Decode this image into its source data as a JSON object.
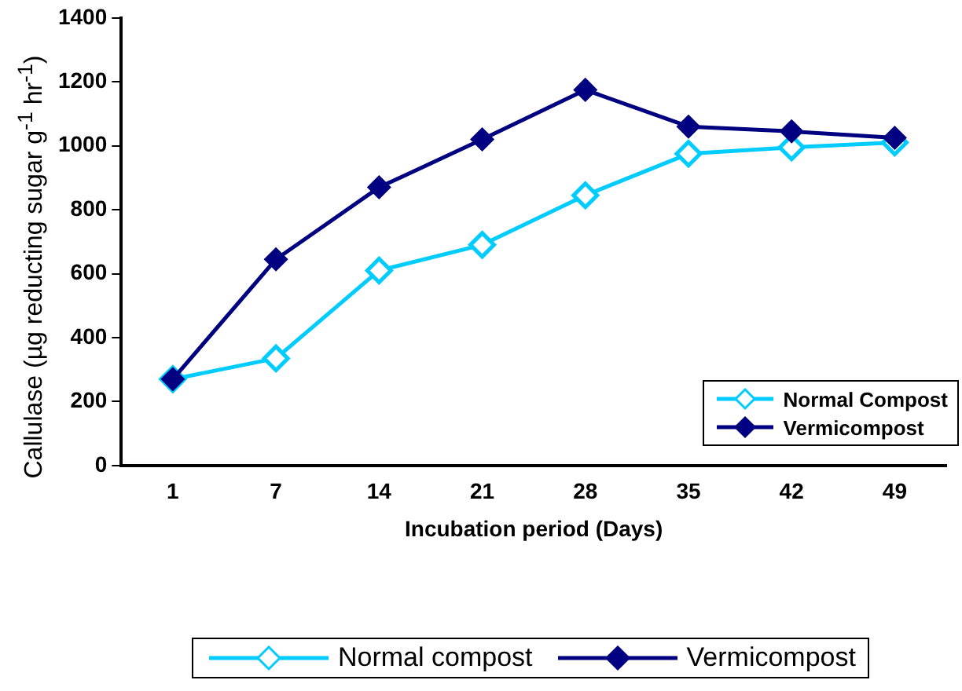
{
  "chart_data": {
    "type": "line",
    "xlabel": "Incubation period (Days)",
    "ylabel": "Callulase (µg reducting sugar g$^{-1}$ hr$^{-1}$)",
    "categories": [
      "1",
      "7",
      "14",
      "21",
      "28",
      "35",
      "42",
      "49"
    ],
    "series": [
      {
        "name": "Normal Compost",
        "color": "#00ccff",
        "values": [
          270,
          335,
          610,
          690,
          845,
          975,
          995,
          1010
        ]
      },
      {
        "name": "Vermicompost",
        "color": "#000080",
        "values": [
          270,
          645,
          870,
          1020,
          1175,
          1060,
          1045,
          1025
        ]
      }
    ],
    "ylim": [
      0,
      1400
    ],
    "yticks": [
      0,
      200,
      400,
      600,
      800,
      1000,
      1200,
      1400
    ],
    "grid": false,
    "legend": "bottom right",
    "marker": "diamond",
    "line_style": "solid",
    "annotations": [
      "Normal compost",
      "Vermicompost"
    ]
  }
}
